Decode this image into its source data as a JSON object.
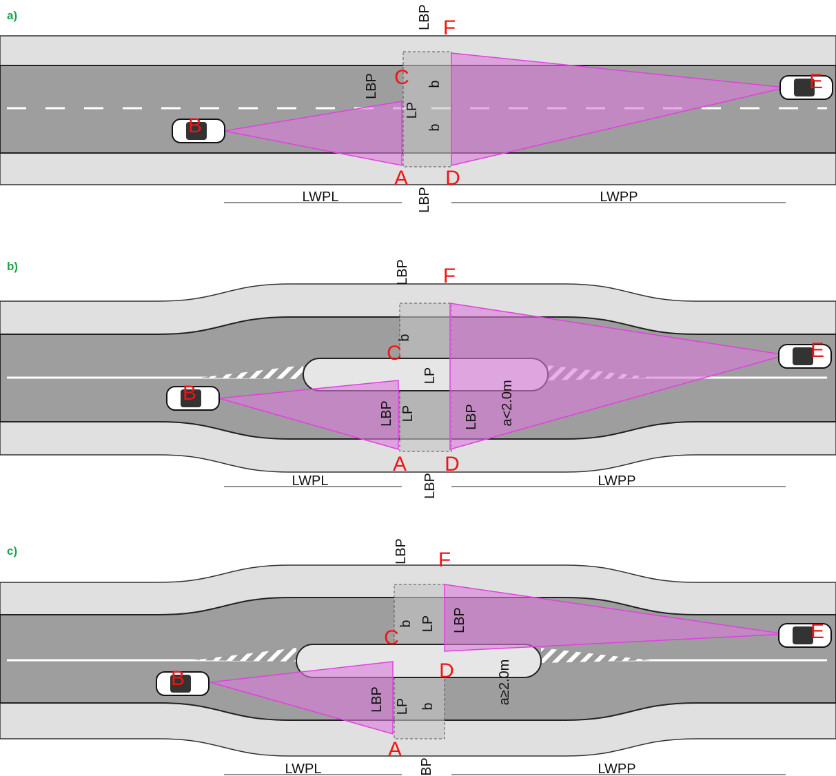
{
  "panels": [
    {
      "label": "a)",
      "points": [
        "A",
        "B",
        "C",
        "D",
        "E",
        "F"
      ],
      "dimensions": [
        "LBP",
        "LBP",
        "LP",
        "b",
        "b",
        "LWPL",
        "LBP",
        "LWPP"
      ]
    },
    {
      "label": "b)",
      "points": [
        "A",
        "B",
        "C",
        "D",
        "E",
        "F"
      ],
      "dimensions": [
        "LBP",
        "b",
        "LP",
        "LBP",
        "LP",
        "LBP",
        "a<2.0m",
        "LWPL",
        "LBP",
        "LWPP"
      ]
    },
    {
      "label": "c)",
      "points": [
        "A",
        "B",
        "C",
        "D",
        "E",
        "F"
      ],
      "dimensions": [
        "LBP",
        "b",
        "LP",
        "LBP",
        "a≥2.0m",
        "LBP",
        "LP",
        "b",
        "LWPL",
        "LBP",
        "LWPP"
      ]
    }
  ]
}
